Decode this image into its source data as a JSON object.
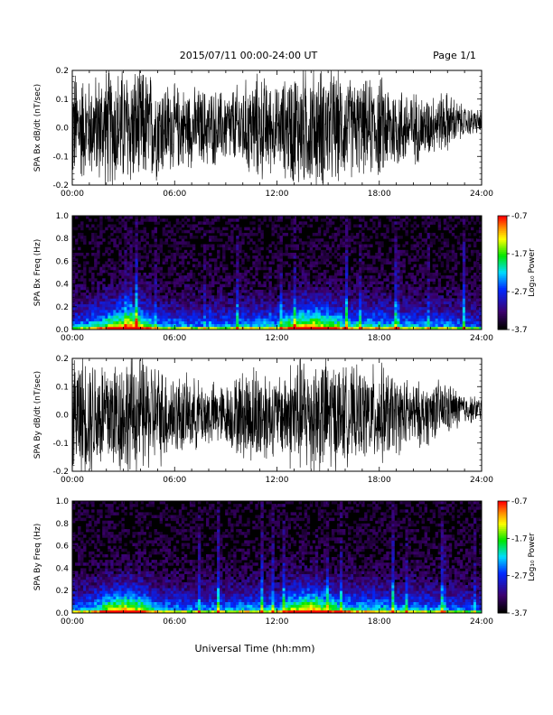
{
  "header": {
    "title": "2015/07/11  00:00-24:00 UT",
    "page": "Page 1/1"
  },
  "footer": {
    "xlabel": "Universal Time (hh:mm)"
  },
  "colorbar": {
    "label": "Log₁₀ Power",
    "tick_labels": [
      "-0.7",
      "-1.7",
      "-2.7",
      "-3.7"
    ],
    "range": [
      -3.7,
      -0.7
    ],
    "colormap": "rainbow (black→purple→blue→cyan→green→yellow→orange→red)"
  },
  "chart_data": [
    {
      "type": "line",
      "ylabel": "SPA Bx dB/dt (nT/sec)",
      "xlim": [
        0,
        24
      ],
      "ylim": [
        -0.2,
        0.2
      ],
      "x_tick_labels": [
        "00:00",
        "06:00",
        "12:00",
        "18:00",
        "24:00"
      ],
      "y_tick_labels": [
        "0.2",
        "0.1",
        "0.0",
        "-0.1",
        "-0.2"
      ],
      "envelope": {
        "hours": [
          0,
          1,
          2,
          3,
          4,
          5,
          6,
          7,
          8,
          9,
          10,
          11,
          12,
          13,
          14,
          15,
          16,
          17,
          18,
          19,
          20,
          21,
          22,
          23,
          24
        ],
        "amplitude": [
          0.2,
          0.16,
          0.2,
          0.2,
          0.2,
          0.17,
          0.14,
          0.13,
          0.13,
          0.12,
          0.15,
          0.18,
          0.13,
          0.2,
          0.2,
          0.2,
          0.17,
          0.15,
          0.17,
          0.14,
          0.12,
          0.1,
          0.1,
          0.05,
          0.04
        ]
      }
    },
    {
      "type": "heatmap",
      "ylabel": "SPA Bx Freq (Hz)",
      "xlim": [
        0,
        24
      ],
      "ylim": [
        0,
        1.0
      ],
      "x_tick_labels": [
        "00:00",
        "06:00",
        "12:00",
        "18:00",
        "24:00"
      ],
      "y_tick_labels": [
        "1.0",
        "0.8",
        "0.6",
        "0.4",
        "0.2",
        "0.0"
      ],
      "zlim": [
        -3.7,
        -0.7
      ],
      "activity": {
        "hours": [
          0,
          1,
          2,
          3,
          4,
          5,
          6,
          7,
          8,
          9,
          10,
          11,
          12,
          13,
          14,
          15,
          16,
          17,
          18,
          19,
          20,
          21,
          22,
          23,
          24
        ],
        "level": [
          0.4,
          0.5,
          0.7,
          0.9,
          0.8,
          0.5,
          0.45,
          0.45,
          0.4,
          0.45,
          0.5,
          0.5,
          0.5,
          0.8,
          0.9,
          0.75,
          0.6,
          0.55,
          0.55,
          0.5,
          0.5,
          0.45,
          0.45,
          0.4,
          0.35
        ]
      }
    },
    {
      "type": "line",
      "ylabel": "SPA By dB/dt (nT/sec)",
      "xlim": [
        0,
        24
      ],
      "ylim": [
        -0.2,
        0.2
      ],
      "x_tick_labels": [
        "00:00",
        "06:00",
        "12:00",
        "18:00",
        "24:00"
      ],
      "y_tick_labels": [
        "0.2",
        "0.1",
        "0.0",
        "-0.1",
        "-0.2"
      ],
      "envelope": {
        "hours": [
          0,
          1,
          2,
          3,
          4,
          5,
          6,
          7,
          8,
          9,
          10,
          11,
          12,
          13,
          14,
          15,
          16,
          17,
          18,
          19,
          20,
          21,
          22,
          23,
          24
        ],
        "amplitude": [
          0.2,
          0.2,
          0.2,
          0.2,
          0.2,
          0.17,
          0.14,
          0.12,
          0.11,
          0.1,
          0.15,
          0.18,
          0.12,
          0.2,
          0.2,
          0.2,
          0.16,
          0.15,
          0.17,
          0.13,
          0.11,
          0.1,
          0.09,
          0.05,
          0.04
        ]
      }
    },
    {
      "type": "heatmap",
      "ylabel": "SPA By Freq (Hz)",
      "xlim": [
        0,
        24
      ],
      "ylim": [
        0,
        1.0
      ],
      "x_tick_labels": [
        "00:00",
        "06:00",
        "12:00",
        "18:00",
        "24:00"
      ],
      "y_tick_labels": [
        "1.0",
        "0.8",
        "0.6",
        "0.4",
        "0.2",
        "0.0"
      ],
      "zlim": [
        -3.7,
        -0.7
      ],
      "activity": {
        "hours": [
          0,
          1,
          2,
          3,
          4,
          5,
          6,
          7,
          8,
          9,
          10,
          11,
          12,
          13,
          14,
          15,
          16,
          17,
          18,
          19,
          20,
          21,
          22,
          23,
          24
        ],
        "level": [
          0.45,
          0.5,
          0.75,
          0.9,
          0.8,
          0.5,
          0.45,
          0.45,
          0.45,
          0.45,
          0.5,
          0.5,
          0.5,
          0.8,
          0.9,
          0.75,
          0.6,
          0.55,
          0.55,
          0.5,
          0.5,
          0.45,
          0.45,
          0.4,
          0.35
        ]
      }
    }
  ]
}
